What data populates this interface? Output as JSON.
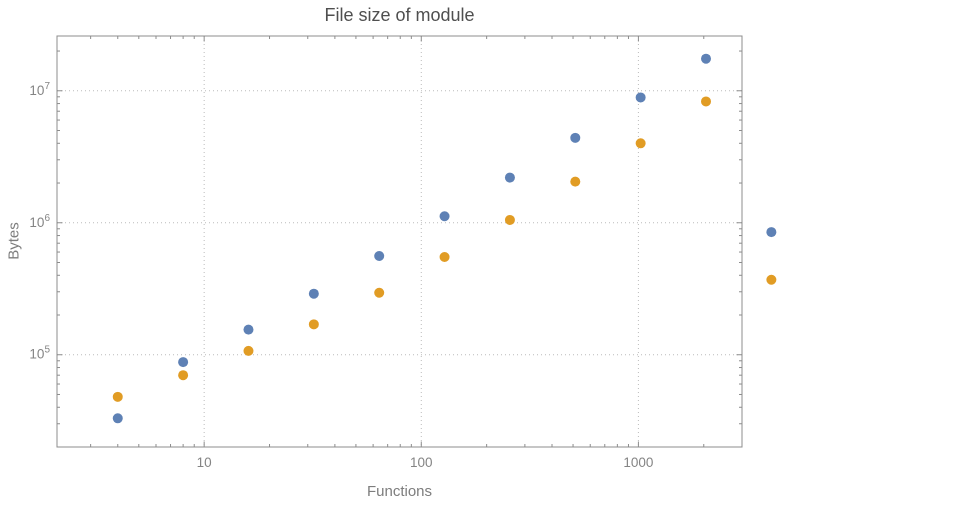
{
  "chart_data": {
    "type": "scatter",
    "title": "File size of module",
    "xlabel": "Functions",
    "ylabel": "Bytes",
    "x_scale": "log",
    "y_scale": "log",
    "grid": "dotted",
    "legend": "none",
    "x_range": [
      2.1,
      3000
    ],
    "y_range": [
      20000,
      26000000
    ],
    "x_ticks": [
      10,
      100,
      1000
    ],
    "x_tick_labels": [
      "10",
      "100",
      "1000"
    ],
    "y_ticks": [
      100000,
      1000000,
      10000000
    ],
    "y_tick_labels": [
      "10^5",
      "10^6",
      "10^7"
    ],
    "x": [
      4,
      8,
      16,
      32,
      64,
      128,
      256,
      512,
      1024,
      2048,
      4096
    ],
    "series": [
      {
        "name": "series-blue",
        "color": "#5e81b5",
        "values": [
          33000,
          88000,
          155000,
          290000,
          560000,
          1120000,
          2200000,
          4400000,
          8900000,
          17500000,
          850000
        ]
      },
      {
        "name": "series-orange",
        "color": "#e19c24",
        "values": [
          48000,
          70000,
          107000,
          170000,
          295000,
          550000,
          1050000,
          2050000,
          4000000,
          8300000,
          370000
        ]
      }
    ],
    "style": {
      "background": "#ffffff",
      "frame_color": "#8c8c8c",
      "grid_color": "#bcbcbc",
      "tick_label_color": "#848484",
      "title_color": "#4f4f4f",
      "axis_label_color": "#7d7d7d"
    }
  }
}
